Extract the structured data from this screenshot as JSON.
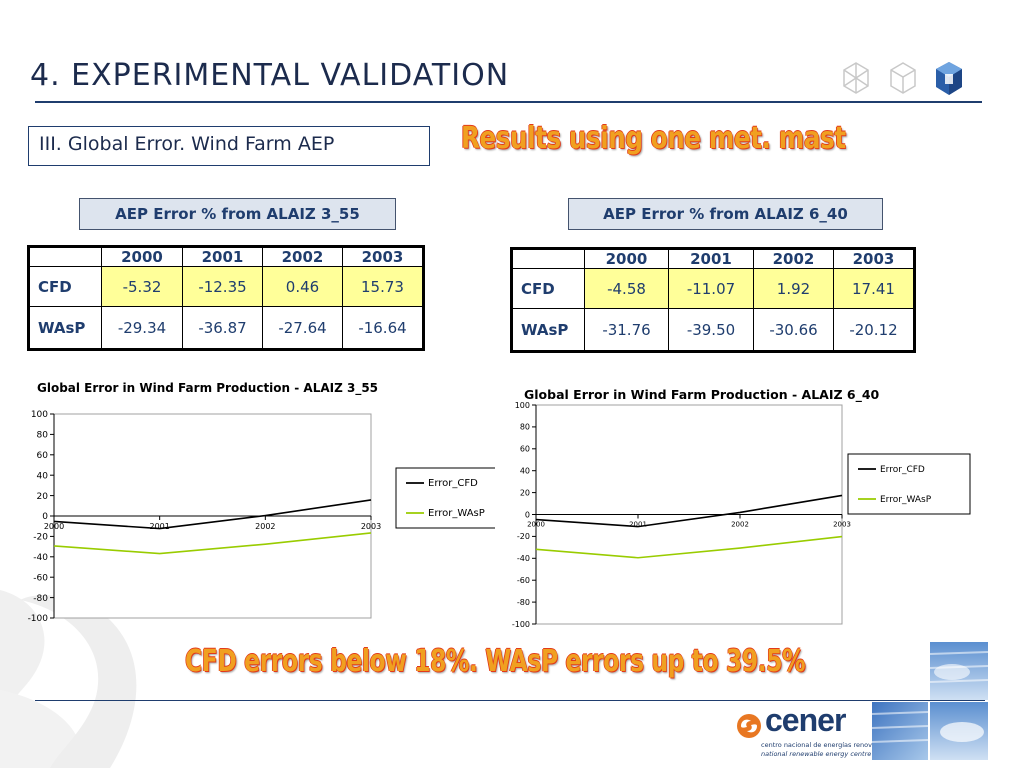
{
  "title": "4. EXPERIMENTAL VALIDATION",
  "subtitle": "III. Global Error. Wind Farm AEP",
  "headline_top": "Results using one met. mast",
  "headline_bottom": "CFD errors below 18%. WAsP errors up to 39.5%",
  "tables": [
    {
      "label": "AEP Error % from ALAIZ 3_55",
      "years": [
        "2000",
        "2001",
        "2002",
        "2003"
      ],
      "rows": [
        {
          "name": "CFD",
          "values": [
            "-5.32",
            "-12.35",
            "0.46",
            "15.73"
          ]
        },
        {
          "name": "WAsP",
          "values": [
            "-29.34",
            "-36.87",
            "-27.64",
            "-16.64"
          ]
        }
      ]
    },
    {
      "label": "AEP Error % from ALAIZ 6_40",
      "years": [
        "2000",
        "2001",
        "2002",
        "2003"
      ],
      "rows": [
        {
          "name": "CFD",
          "values": [
            "-4.58",
            "-11.07",
            "1.92",
            "17.41"
          ]
        },
        {
          "name": "WAsP",
          "values": [
            "-31.76",
            "-39.50",
            "-30.66",
            "-20.12"
          ]
        }
      ]
    }
  ],
  "chart_data": [
    {
      "type": "line",
      "title": "Global Error in Wind Farm Production - ALAIZ 3_55",
      "categories": [
        "2000",
        "2001",
        "2002",
        "2003"
      ],
      "series": [
        {
          "name": "Error_CFD",
          "color": "#000000",
          "values": [
            -5.32,
            -12.35,
            0.46,
            15.73
          ]
        },
        {
          "name": "Error_WAsP",
          "color": "#99cc00",
          "values": [
            -29.34,
            -36.87,
            -27.64,
            -16.64
          ]
        }
      ],
      "ylim": [
        -100,
        100
      ],
      "yticks": [
        "100",
        "80",
        "60",
        "40",
        "20",
        "0",
        "-20",
        "-40",
        "-60",
        "-80",
        "-100"
      ],
      "grid": false,
      "legend": "right"
    },
    {
      "type": "line",
      "title": "Global Error in Wind Farm Production - ALAIZ 6_40",
      "categories": [
        "2000",
        "2001",
        "2002",
        "2003"
      ],
      "series": [
        {
          "name": "Error_CFD",
          "color": "#000000",
          "values": [
            -4.58,
            -11.07,
            1.92,
            17.41
          ]
        },
        {
          "name": "Error_WAsP",
          "color": "#99cc00",
          "values": [
            -31.76,
            -39.5,
            -30.66,
            -20.12
          ]
        }
      ],
      "ylim": [
        -100,
        100
      ],
      "yticks": [
        "100",
        "80",
        "60",
        "40",
        "20",
        "0",
        "-20",
        "-40",
        "-60",
        "-80",
        "-100"
      ],
      "grid": false,
      "legend": "right"
    }
  ],
  "footer": {
    "logo_name": "cener",
    "logo_line1": "centro nacional de energías renovables",
    "logo_line2": "national renewable energy centre"
  },
  "colors": {
    "title": "#1c2b4d",
    "rule": "#1f3d6e",
    "headline_fill": "#f0a020",
    "headline_outline": "#e23a1a",
    "table_highlight": "#ffff99",
    "logo_orange": "#e87722",
    "logo_blue": "#1f3d6e"
  }
}
